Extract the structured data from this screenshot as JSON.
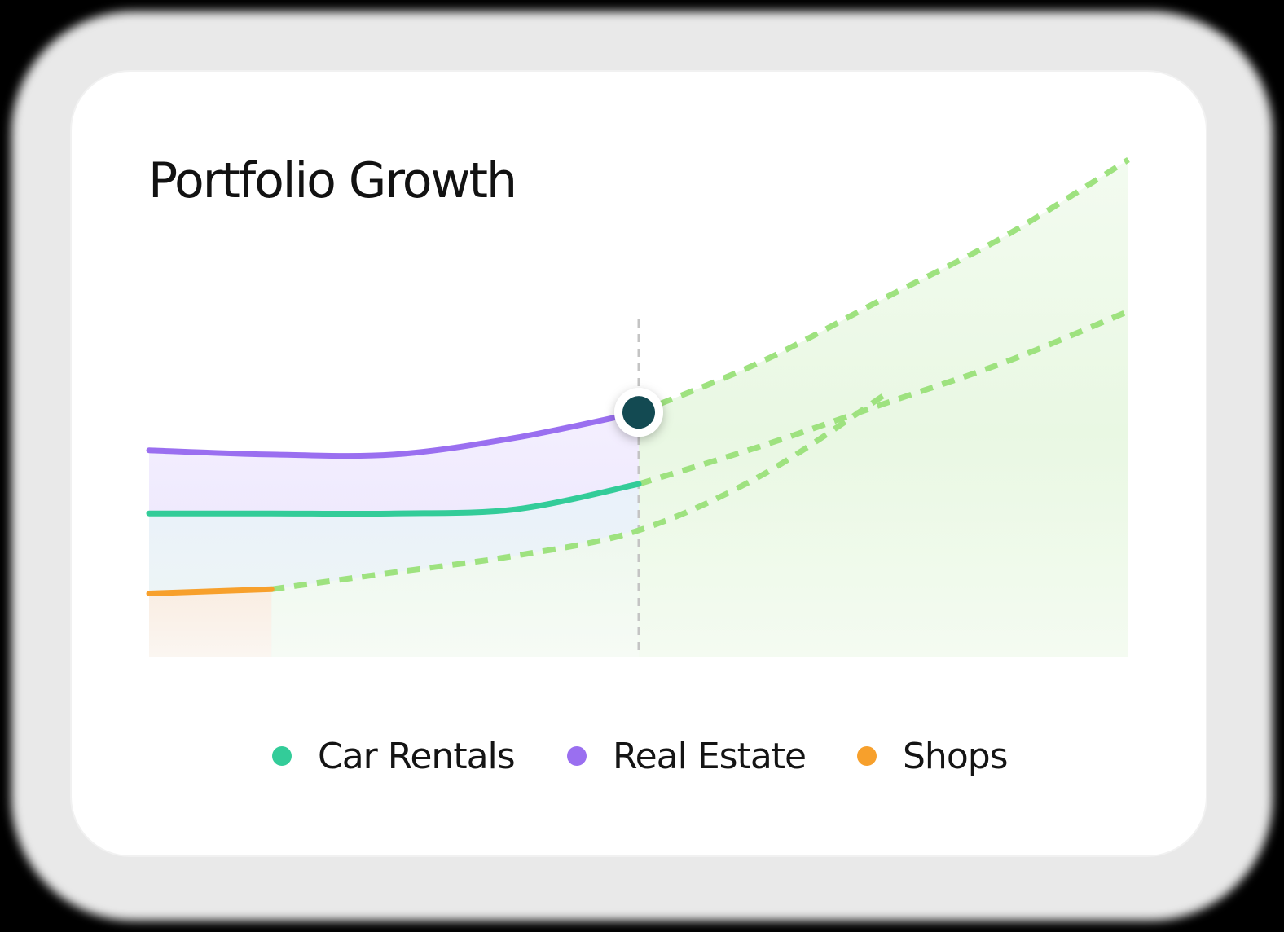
{
  "title": "Portfolio Growth",
  "chart_data": {
    "type": "line",
    "x": [
      0,
      1,
      2,
      3,
      4,
      5,
      6,
      7,
      8
    ],
    "split_x": 4,
    "ylim": [
      0,
      100
    ],
    "grid": false,
    "legend_position": "bottom",
    "series": [
      {
        "name": "Car Rentals",
        "color": "#33cc99",
        "actual": [
          34,
          34,
          34,
          35,
          41
        ],
        "projected": [
          41,
          50,
          60,
          70,
          82
        ]
      },
      {
        "name": "Real Estate",
        "color": "#9a6ff0",
        "actual": [
          49,
          48,
          48,
          52,
          58
        ],
        "projected": [
          58,
          70,
          85,
          100,
          118
        ]
      },
      {
        "name": "Shops",
        "color": "#f7a02c",
        "actual": [
          15,
          16
        ],
        "projected": [
          16,
          20,
          24,
          30,
          43,
          62
        ]
      }
    ],
    "projection_color": "#9ee27f",
    "highlight": {
      "series": "Real Estate",
      "x": 4
    }
  },
  "legend": {
    "items": [
      {
        "label": "Car Rentals",
        "color": "#33cc99"
      },
      {
        "label": "Real Estate",
        "color": "#9a6ff0"
      },
      {
        "label": "Shops",
        "color": "#f7a02c"
      }
    ]
  }
}
